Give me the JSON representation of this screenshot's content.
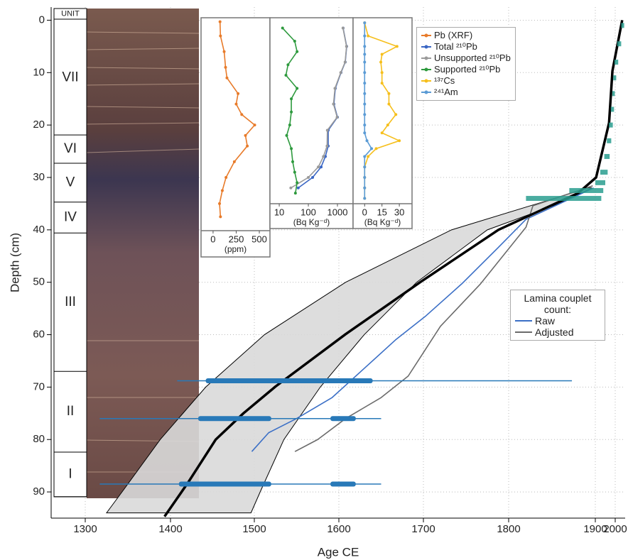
{
  "chart_data": [
    {
      "type": "line",
      "x_label": "Age CE",
      "y_label": "Depth (cm)",
      "xlim": [
        1260,
        2020
      ],
      "xticks": [
        1300,
        1400,
        1500,
        1600,
        1700,
        1800,
        1900,
        2000
      ],
      "ylim": [
        -2.5,
        95
      ],
      "yticks": [
        0,
        10,
        20,
        30,
        40,
        50,
        60,
        70,
        80,
        90
      ],
      "y_inverted": true,
      "grid": true,
      "units": {
        "header": "UNIT",
        "items": [
          {
            "label": "VII",
            "top": 0,
            "bottom": 21.9
          },
          {
            "label": "VI",
            "top": 21.9,
            "bottom": 27.3
          },
          {
            "label": "V",
            "top": 27.3,
            "bottom": 34.7
          },
          {
            "label": "IV",
            "top": 34.7,
            "bottom": 40.6
          },
          {
            "label": "III",
            "top": 40.6,
            "bottom": 67
          },
          {
            "label": "II",
            "top": 67,
            "bottom": 82.4
          },
          {
            "label": "I",
            "top": 82.4,
            "bottom": 90.9
          }
        ]
      },
      "median": {
        "color": "#000000",
        "depth": [
          0,
          9.7,
          19.6,
          30,
          33,
          40,
          49.9,
          59.9,
          69.9,
          75,
          80,
          88.2,
          94.7
        ],
        "values": [
          2014,
          1986,
          1969,
          1904,
          1880,
          1788,
          1697,
          1608,
          1525,
          1487,
          1454,
          1421,
          1393
        ]
      },
      "envelope": {
        "color": "#d9d9d9",
        "depth": [
          32,
          35,
          40,
          50,
          60,
          70,
          80,
          89.6,
          94
        ],
        "lower": [
          1892,
          1833,
          1733,
          1608,
          1512,
          1442,
          1388,
          1345,
          1325
        ],
        "upper": [
          1896,
          1858,
          1775,
          1692,
          1630,
          1578,
          1535,
          1508,
          1496
        ]
      },
      "legend_title": "Lamina couplet count:",
      "series": [
        {
          "name": "Raw",
          "color": "#3b6fc6",
          "depth": [
            32,
            38,
            43.5,
            50.3,
            56.4,
            61,
            66,
            72,
            76,
            78.7,
            82.3
          ],
          "values": [
            1898,
            1820,
            1787,
            1745,
            1703,
            1667,
            1633,
            1592,
            1550,
            1517,
            1497
          ]
        },
        {
          "name": "Adjusted",
          "color": "#6b6b6b",
          "depth": [
            31.6,
            35.4,
            39.5,
            50.3,
            58.4,
            67.9,
            72,
            76,
            80,
            82.3
          ],
          "values": [
            1897,
            1828,
            1820,
            1767,
            1720,
            1682,
            1650,
            1608,
            1575,
            1548
          ]
        }
      ],
      "age_ranges": {
        "color": "#2879b8",
        "items": [
          {
            "depth": 68.8,
            "range": [
              1408,
              1873
            ],
            "core": [
              [
                1442,
                1640
              ]
            ]
          },
          {
            "depth": 76,
            "range": [
              1317,
              1650
            ],
            "core": [
              [
                1433,
                1520
              ],
              [
                1590,
                1620
              ]
            ]
          },
          {
            "depth": 88.5,
            "range": [
              1317,
              1650
            ],
            "core": [
              [
                1410,
                1520
              ],
              [
                1590,
                1620
              ]
            ]
          }
        ]
      },
      "pb210_ages": {
        "color": "#2a9d8f",
        "items": [
          {
            "depth": 1,
            "range": [
              2012,
              2018
            ]
          },
          {
            "depth": 4.5,
            "range": [
              2004,
              2012
            ]
          },
          {
            "depth": 8,
            "range": [
              1996,
              2006
            ]
          },
          {
            "depth": 11,
            "range": [
              1990,
              2002
            ]
          },
          {
            "depth": 14,
            "range": [
              1985,
              1998
            ]
          },
          {
            "depth": 17,
            "range": [
              1978,
              1994
            ]
          },
          {
            "depth": 20,
            "range": [
              1968,
              1988
            ]
          },
          {
            "depth": 23,
            "range": [
              1958,
              1980
            ]
          },
          {
            "depth": 26,
            "range": [
              1945,
              1972
            ]
          },
          {
            "depth": 29,
            "range": [
              1925,
              1962
            ]
          },
          {
            "depth": 31,
            "range": [
              1900,
              1950
            ]
          },
          {
            "depth": 32.5,
            "range": [
              1870,
              1940
            ]
          },
          {
            "depth": 34,
            "range": [
              1820,
              1930
            ]
          }
        ]
      }
    },
    {
      "type": "line",
      "x_label": "(ppm)",
      "xlim": [
        -130,
        615
      ],
      "xticks": [
        0,
        250,
        500
      ],
      "series": [
        {
          "name": "Pb (XRF)",
          "color": "#e87b2a",
          "depth": [
            0.3,
            3,
            6,
            9,
            11,
            14,
            16,
            18,
            20,
            22,
            24,
            27,
            30,
            32.5,
            35,
            37.5
          ],
          "values": [
            75,
            80,
            120,
            135,
            150,
            270,
            250,
            310,
            450,
            350,
            370,
            230,
            140,
            100,
            70,
            80
          ]
        }
      ]
    },
    {
      "type": "line",
      "x_label": "(Bq Kg⁻ᵈ)",
      "x_log": true,
      "xlim": [
        4.8,
        3440
      ],
      "xticks": [
        10,
        100,
        1000
      ],
      "series": [
        {
          "name": "Total ²¹⁰Pb",
          "color": "#3a66c4",
          "depth": [
            1.5,
            5,
            8,
            10,
            13,
            16,
            18.5,
            21,
            24,
            26,
            28,
            30,
            32
          ],
          "values": [
            1566,
            2075,
            1855,
            1324,
            845,
            755,
            1000,
            482,
            482,
            385,
            275,
            140,
            45
          ]
        },
        {
          "name": "Unsupported ²¹⁰Pb",
          "color": "#9a9a9a",
          "depth": [
            1.5,
            5,
            8,
            10,
            13,
            16,
            18.5,
            21,
            24,
            26,
            28,
            30,
            32
          ],
          "values": [
            1550,
            2050,
            1830,
            1300,
            820,
            730,
            975,
            450,
            440,
            330,
            220,
            100,
            25
          ]
        },
        {
          "name": "Supported ²¹⁰Pb",
          "color": "#2e9a3e",
          "depth": [
            1.5,
            4,
            6,
            8.5,
            10.5,
            13,
            15,
            17.5,
            20,
            22,
            24.5,
            27,
            29,
            31,
            33
          ],
          "values": [
            13,
            34,
            41,
            20,
            17,
            41,
            26,
            26,
            23,
            18,
            26,
            29,
            34,
            41,
            36
          ]
        }
      ]
    },
    {
      "type": "line",
      "x_label": "(Bq Kg⁻ᵈ)",
      "xlim": [
        -10,
        41
      ],
      "xticks": [
        0,
        15,
        30
      ],
      "series": [
        {
          "name": "¹³⁷Cs",
          "color": "#f6bf1c",
          "depth": [
            0.5,
            3,
            5,
            6.5,
            8,
            10,
            12,
            14,
            16,
            18,
            20,
            21.5,
            23,
            24.5,
            26,
            28,
            30,
            32,
            34
          ],
          "values": [
            0,
            3,
            28,
            15,
            14,
            15,
            15,
            21,
            21,
            27,
            20,
            15,
            30,
            10,
            3,
            0,
            0,
            0,
            0
          ]
        },
        {
          "name": "²⁴¹Am",
          "color": "#5b9bd5",
          "depth": [
            0.5,
            3,
            5,
            6.5,
            8,
            10,
            12,
            14,
            16,
            18,
            20,
            21.5,
            23,
            24.5,
            26,
            28,
            30,
            32,
            34
          ],
          "values": [
            0,
            0,
            0,
            0,
            0,
            0,
            0,
            0,
            0,
            0,
            0,
            0,
            2,
            6,
            0,
            0,
            0,
            0,
            0
          ]
        }
      ]
    }
  ]
}
